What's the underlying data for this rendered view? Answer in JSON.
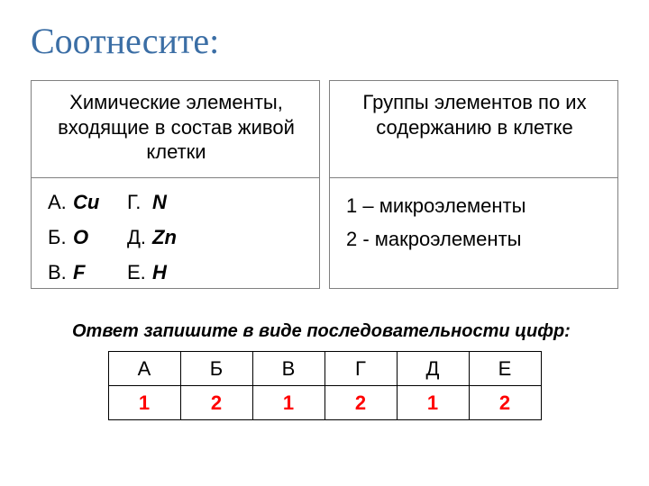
{
  "title": "Соотнесите:",
  "title_color": "#3b6ea5",
  "left": {
    "header": "Химические элементы, входящие в состав живой клетки",
    "items": [
      {
        "label": "А.",
        "symbol": "Cu"
      },
      {
        "label": "Б.",
        "symbol": "O"
      },
      {
        "label": "В.",
        "symbol": "F"
      },
      {
        "label": "Г.",
        "symbol": "N"
      },
      {
        "label": "Д.",
        "symbol": "Zn"
      },
      {
        "label": "Е.",
        "symbol": "H"
      }
    ]
  },
  "right": {
    "header": "Группы элементов по их содержанию в клетке",
    "items": [
      "1 – микроэлементы",
      "2 - макроэлементы"
    ]
  },
  "hint": "Ответ запишите в виде последовательности цифр:",
  "answer": {
    "columns": [
      "А",
      "Б",
      "В",
      "Г",
      "Д",
      "Е"
    ],
    "values": [
      "1",
      "2",
      "1",
      "2",
      "1",
      "2"
    ],
    "value_color": "#ff0000"
  },
  "style": {
    "border_color": "#808080",
    "background": "#ffffff",
    "body_font_size": 22,
    "title_font_size": 40
  }
}
